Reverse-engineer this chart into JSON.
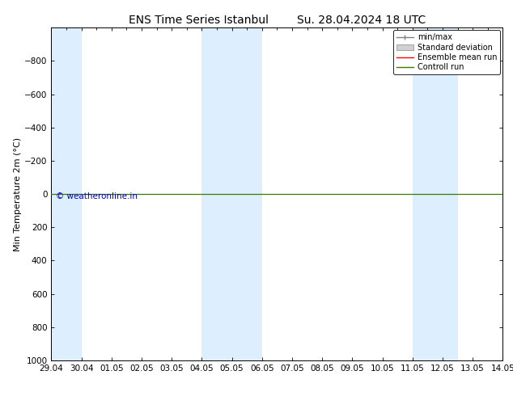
{
  "title": "ENS Time Series Istanbul",
  "subtitle": "Su. 28.04.2024 18 UTC",
  "ylabel": "Min Temperature 2m (°C)",
  "xlabel_ticks": [
    "29.04",
    "30.04",
    "01.05",
    "02.05",
    "03.05",
    "04.05",
    "05.05",
    "06.05",
    "07.05",
    "08.05",
    "09.05",
    "10.05",
    "11.05",
    "12.05",
    "13.05",
    "14.05"
  ],
  "xlim": [
    0,
    15
  ],
  "ylim": [
    1000,
    -1000
  ],
  "yticks": [
    -800,
    -600,
    -400,
    -200,
    0,
    200,
    400,
    600,
    800,
    1000
  ],
  "background_color": "#ffffff",
  "plot_bg_color": "#ffffff",
  "shaded_bands": [
    {
      "x_start": 0.0,
      "x_end": 1.0,
      "color": "#ddeeff"
    },
    {
      "x_start": 5.0,
      "x_end": 7.0,
      "color": "#ddeeff"
    },
    {
      "x_start": 12.0,
      "x_end": 13.5,
      "color": "#ddeeff"
    }
  ],
  "control_run_y": 0,
  "control_run_color": "#3a7d00",
  "ensemble_mean_color": "#ff0000",
  "std_dev_color": "#c8c8c8",
  "minmax_color": "#909090",
  "watermark_text": "© weatheronline.in",
  "watermark_color": "#0000cc",
  "legend_entries": [
    "min/max",
    "Standard deviation",
    "Ensemble mean run",
    "Controll run"
  ],
  "legend_colors": [
    "#808080",
    "#d0d0d0",
    "#ff0000",
    "#3a7d00"
  ],
  "title_fontsize": 10,
  "axis_fontsize": 8,
  "tick_fontsize": 7.5
}
